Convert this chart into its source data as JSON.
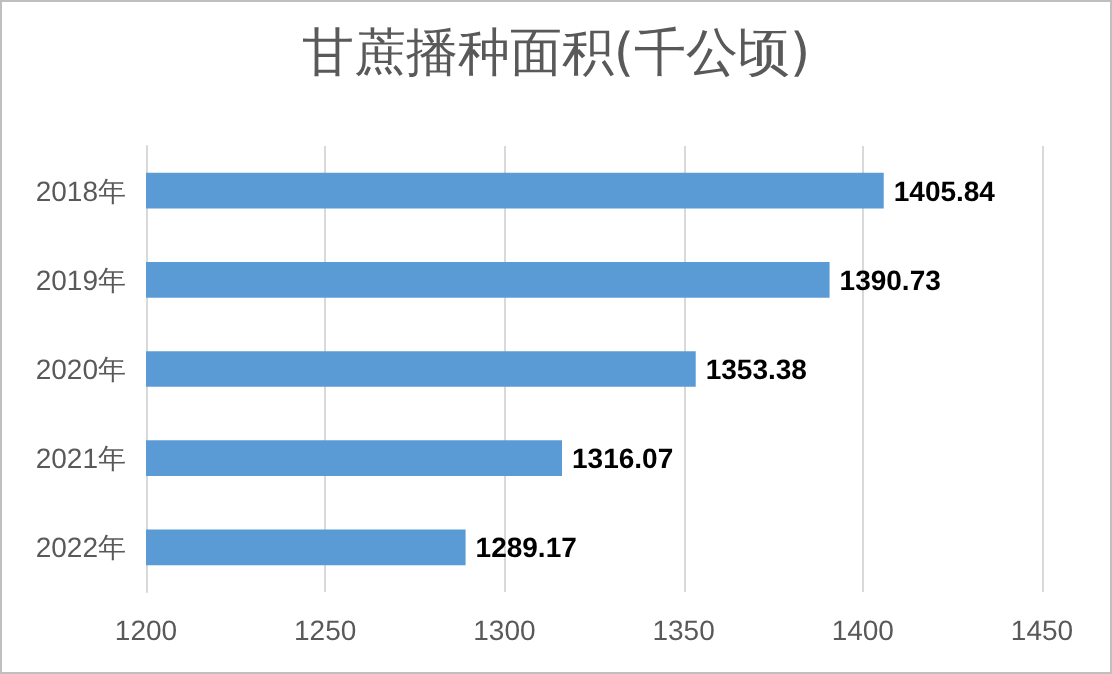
{
  "chart_data": {
    "type": "bar",
    "title": "甘蔗播种面积(千公顷)",
    "orientation": "horizontal",
    "categories": [
      "2018年",
      "2019年",
      "2020年",
      "2021年",
      "2022年"
    ],
    "values": [
      1405.84,
      1390.73,
      1353.38,
      1316.07,
      1289.17
    ],
    "color": "#5b9bd5",
    "xlim": [
      1200,
      1450
    ],
    "xticks": [
      1200,
      1250,
      1300,
      1350,
      1400,
      1450
    ],
    "grid": "x",
    "data_labels": true
  }
}
